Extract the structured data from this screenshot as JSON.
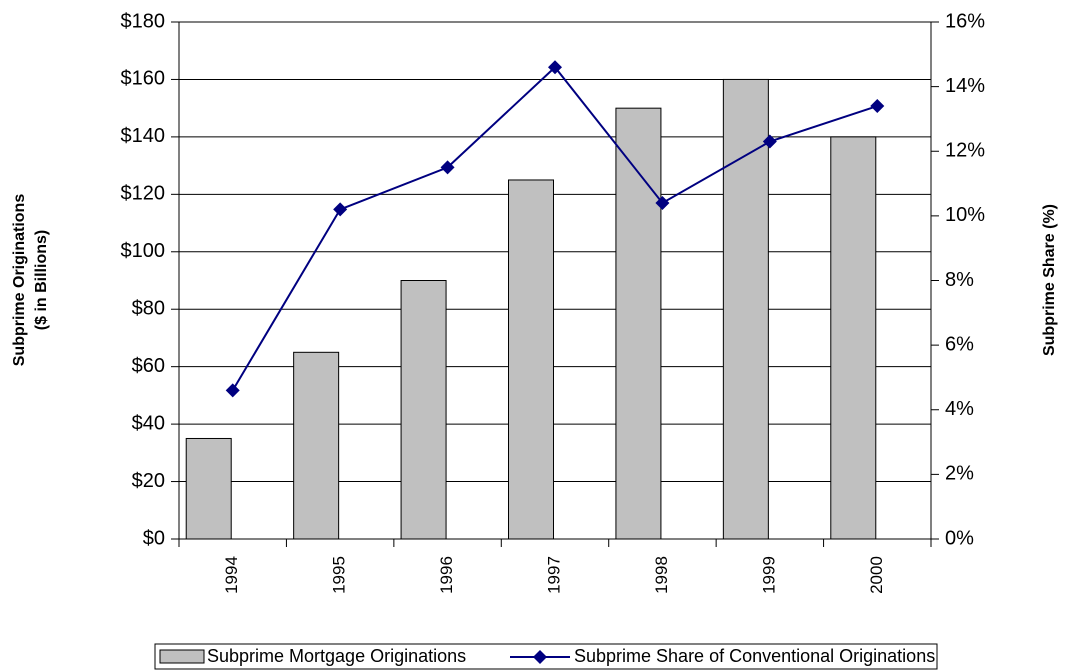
{
  "chart_data": {
    "type": "bar",
    "categories": [
      "1994",
      "1995",
      "1996",
      "1997",
      "1998",
      "1999",
      "2000"
    ],
    "series": [
      {
        "name": "Subprime Mortgage Originations",
        "color": "#c0c0c0",
        "values": [
          35,
          65,
          90,
          125,
          150,
          160,
          140
        ]
      },
      {
        "name": "Subprime Share of Conventional Originations",
        "color": "#000080",
        "axis": "y2",
        "values": [
          4.6,
          10.2,
          11.5,
          14.6,
          10.4,
          12.3,
          13.4
        ]
      }
    ],
    "y_label": [
      "Subprime Originations",
      "($ in Billions)"
    ],
    "y2_label": "Subprime Share (%)",
    "ylim": [
      0,
      180
    ],
    "yticks": [
      {
        "value": 0,
        "label": "$0"
      },
      {
        "value": 20,
        "label": "$20"
      },
      {
        "value": 40,
        "label": "$40"
      },
      {
        "value": 60,
        "label": "$60"
      },
      {
        "value": 80,
        "label": "$80"
      },
      {
        "value": 100,
        "label": "$100"
      },
      {
        "value": 120,
        "label": "$120"
      },
      {
        "value": 140,
        "label": "$140"
      },
      {
        "value": 160,
        "label": "$160"
      },
      {
        "value": 180,
        "label": "$180"
      }
    ],
    "y2lim": [
      0,
      16
    ],
    "y2ticks": [
      {
        "value": 0,
        "label": "0%"
      },
      {
        "value": 2,
        "label": "2%"
      },
      {
        "value": 4,
        "label": "4%"
      },
      {
        "value": 6,
        "label": "6%"
      },
      {
        "value": 8,
        "label": "8%"
      },
      {
        "value": 10,
        "label": "10%"
      },
      {
        "value": 12,
        "label": "12%"
      },
      {
        "value": 14,
        "label": "14%"
      },
      {
        "value": 16,
        "label": "16%"
      }
    ],
    "grid": true,
    "legend": "bottom"
  }
}
